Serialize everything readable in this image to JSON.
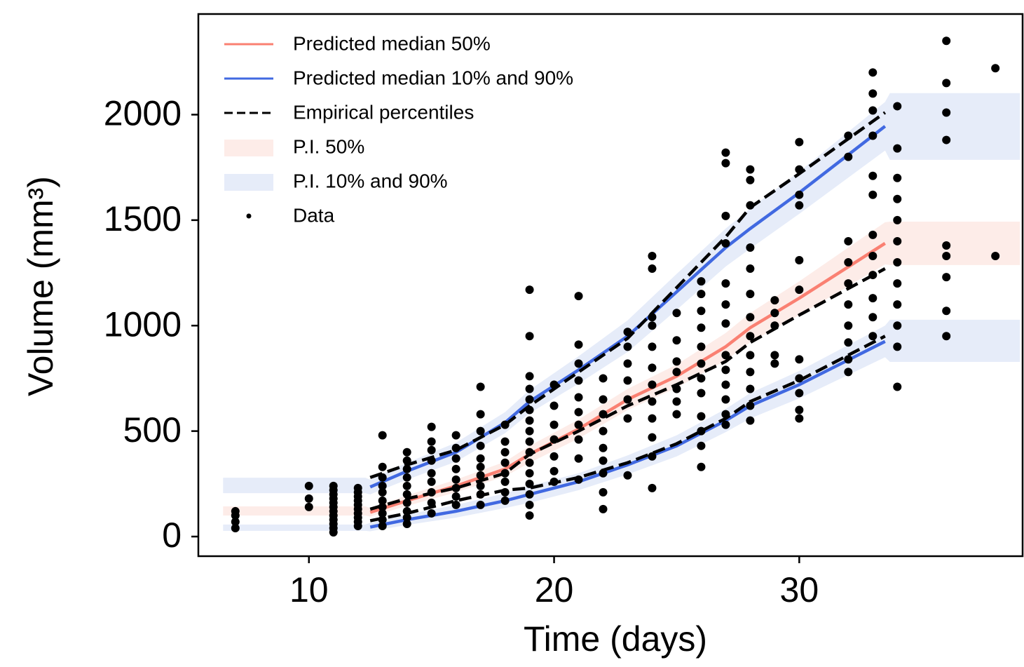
{
  "chart_data": {
    "type": "vpc",
    "xlabel": "Time (days)",
    "ylabel": "Volume (mm³)",
    "xlim": [
      5.49,
      39.11
    ],
    "ylim": [
      -93,
      2477
    ],
    "xticks": [
      10,
      20,
      30
    ],
    "yticks": [
      0,
      500,
      1000,
      1500,
      2000
    ],
    "legend": "upper left",
    "series": [
      {
        "name": "Predicted median 50%",
        "kind": "line",
        "color": "#fa8072",
        "x": [
          12.5,
          14,
          16,
          18,
          19,
          21,
          23,
          25,
          27,
          28,
          30,
          33.5
        ],
        "values": [
          115,
          170,
          240,
          320,
          390,
          510,
          650,
          760,
          900,
          990,
          1130,
          1390
        ]
      },
      {
        "name": "Predicted median 10% and 90%",
        "kind": "lines",
        "color": "#4169e1",
        "x": [
          12.5,
          14,
          16,
          18,
          19,
          21,
          23,
          25,
          27,
          28,
          30,
          33.5
        ],
        "lower": [
          45,
          80,
          120,
          170,
          200,
          260,
          340,
          430,
          550,
          620,
          720,
          925
        ],
        "upper": [
          235,
          310,
          400,
          540,
          640,
          790,
          950,
          1160,
          1370,
          1460,
          1630,
          1945
        ]
      },
      {
        "name": "Empirical percentiles",
        "kind": "dashed",
        "color": "#000000",
        "x": [
          12.5,
          14,
          16,
          18,
          19,
          21,
          23,
          25,
          27,
          28,
          30,
          33.5
        ],
        "p10": [
          75,
          110,
          170,
          220,
          230,
          280,
          350,
          440,
          560,
          640,
          740,
          950
        ],
        "p50": [
          130,
          180,
          230,
          300,
          390,
          500,
          620,
          720,
          830,
          920,
          1050,
          1270
        ],
        "p90": [
          280,
          340,
          410,
          530,
          620,
          780,
          940,
          1180,
          1420,
          1560,
          1720,
          2010
        ]
      },
      {
        "name": "P.I. 50%",
        "kind": "band",
        "color": "#fdece8",
        "x": [
          6.5,
          12.3,
          12.5,
          14,
          16,
          18,
          19,
          21,
          23,
          25,
          27,
          28,
          30,
          33.5,
          33.7,
          39
        ],
        "low": [
          100,
          100,
          95,
          145,
          210,
          285,
          350,
          465,
          600,
          705,
          835,
          920,
          1050,
          1290,
          1287,
          1287
        ],
        "high": [
          143,
          143,
          135,
          195,
          270,
          355,
          430,
          555,
          700,
          815,
          965,
          1060,
          1210,
          1490,
          1493,
          1493
        ]
      },
      {
        "name": "P.I. 10% and 90%",
        "kind": "bands",
        "color": "#e6ecf9",
        "x": [
          6.5,
          12.3,
          12.5,
          14,
          16,
          18,
          19,
          21,
          23,
          25,
          27,
          28,
          30,
          33.5,
          33.7,
          39
        ],
        "lower_low": [
          27,
          27,
          25,
          55,
          90,
          135,
          160,
          220,
          295,
          380,
          495,
          560,
          655,
          850,
          828,
          828
        ],
        "lower_high": [
          57,
          57,
          65,
          105,
          150,
          205,
          240,
          300,
          385,
          480,
          605,
          680,
          785,
          1000,
          1028,
          1028
        ],
        "upper_low": [
          206,
          206,
          200,
          270,
          355,
          490,
          585,
          725,
          875,
          1075,
          1280,
          1365,
          1530,
          1830,
          1786,
          1786
        ],
        "upper_high": [
          279,
          279,
          270,
          350,
          445,
          590,
          695,
          855,
          1025,
          1245,
          1460,
          1555,
          1730,
          2060,
          2102,
          2102
        ]
      },
      {
        "name": "Data",
        "kind": "points",
        "color": "#000000",
        "groups": [
          {
            "x": 7,
            "values": [
              40,
              70,
              100,
              120
            ]
          },
          {
            "x": 10,
            "values": [
              140,
              180,
              240
            ]
          },
          {
            "x": 11,
            "values": [
              20,
              40,
              60,
              80,
              100,
              120,
              140,
              160,
              180,
              200,
              220,
              240
            ]
          },
          {
            "x": 12,
            "values": [
              50,
              70,
              90,
              110,
              130,
              150,
              170,
              190,
              210,
              230
            ]
          },
          {
            "x": 13,
            "values": [
              50,
              80,
              110,
              140,
              170,
              210,
              240,
              280,
              330,
              480
            ]
          },
          {
            "x": 14,
            "values": [
              60,
              90,
              120,
              160,
              200,
              240,
              280,
              320,
              360,
              400
            ]
          },
          {
            "x": 15,
            "values": [
              110,
              160,
              210,
              260,
              300,
              360,
              410,
              450,
              520
            ]
          },
          {
            "x": 16,
            "values": [
              150,
              190,
              230,
              270,
              320,
              370,
              420,
              480
            ]
          },
          {
            "x": 17,
            "values": [
              150,
              200,
              240,
              290,
              330,
              370,
              430,
              500,
              580,
              710
            ]
          },
          {
            "x": 18,
            "values": [
              170,
              210,
              260,
              300,
              350,
              400,
              450,
              530
            ]
          },
          {
            "x": 19,
            "values": [
              100,
              150,
              200,
              250,
              300,
              350,
              400,
              450,
              500,
              550,
              600,
              650,
              700,
              760,
              950,
              1170
            ]
          },
          {
            "x": 20,
            "values": [
              260,
              310,
              380,
              460,
              530,
              620,
              720
            ]
          },
          {
            "x": 21,
            "values": [
              270,
              370,
              460,
              530,
              590,
              660,
              740,
              820,
              910,
              1140
            ]
          },
          {
            "x": 22,
            "values": [
              130,
              210,
              300,
              360,
              420,
              500,
              580,
              650,
              750
            ]
          },
          {
            "x": 23,
            "values": [
              290,
              560,
              650,
              740,
              820,
              900,
              970
            ]
          },
          {
            "x": 24,
            "values": [
              230,
              380,
              470,
              560,
              640,
              720,
              800,
              900,
              1000,
              1040,
              1270,
              1330
            ]
          },
          {
            "x": 25,
            "values": [
              580,
              640,
              700,
              780,
              830,
              930,
              1060
            ]
          },
          {
            "x": 26,
            "values": [
              330,
              430,
              500,
              570,
              680,
              750,
              820,
              900,
              990,
              1070,
              1150,
              1210
            ]
          },
          {
            "x": 27,
            "values": [
              530,
              580,
              650,
              720,
              790,
              860,
              1010,
              1100,
              1200,
              1390,
              1520,
              1770,
              1820
            ]
          },
          {
            "x": 28,
            "values": [
              550,
              620,
              700,
              780,
              860,
              950,
              1040,
              1150,
              1270,
              1370,
              1570,
              1690,
              1740
            ]
          },
          {
            "x": 29,
            "values": [
              820,
              860,
              1000,
              1060,
              1120
            ]
          },
          {
            "x": 30,
            "values": [
              560,
              600,
              680,
              750,
              840,
              1170,
              1310,
              1570,
              1620,
              1740,
              1870
            ]
          },
          {
            "x": 32,
            "values": [
              780,
              840,
              920,
              1000,
              1100,
              1200,
              1300,
              1400,
              1800,
              1900
            ]
          },
          {
            "x": 33,
            "values": [
              950,
              1040,
              1130,
              1240,
              1330,
              1430,
              1620,
              1710,
              1900,
              2020,
              2100,
              2200
            ]
          },
          {
            "x": 34,
            "values": [
              710,
              900,
              1000,
              1100,
              1200,
              1300,
              1400,
              1500,
              1600,
              1700,
              1840,
              2040
            ]
          },
          {
            "x": 36,
            "values": [
              950,
              1070,
              1230,
              1330,
              1380,
              1880,
              2010,
              2150,
              2350
            ]
          },
          {
            "x": 38,
            "values": [
              1330,
              2220
            ]
          }
        ]
      }
    ]
  }
}
